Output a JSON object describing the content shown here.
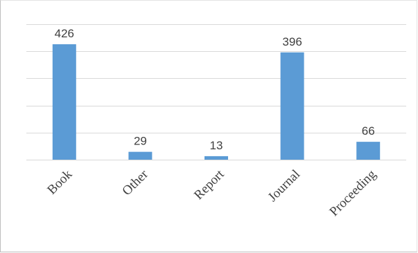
{
  "chart_data": {
    "type": "bar",
    "categories": [
      "Book",
      "Other",
      "Report",
      "Journal",
      "Proceeding"
    ],
    "values": [
      426,
      29,
      13,
      396,
      66
    ],
    "title": "",
    "xlabel": "",
    "ylabel": "",
    "ylim": [
      0,
      500
    ],
    "grid": true,
    "legend": "none",
    "colors": {
      "bar": "#5b9bd5",
      "grid": "#d9d9d9",
      "text": "#404040"
    }
  }
}
